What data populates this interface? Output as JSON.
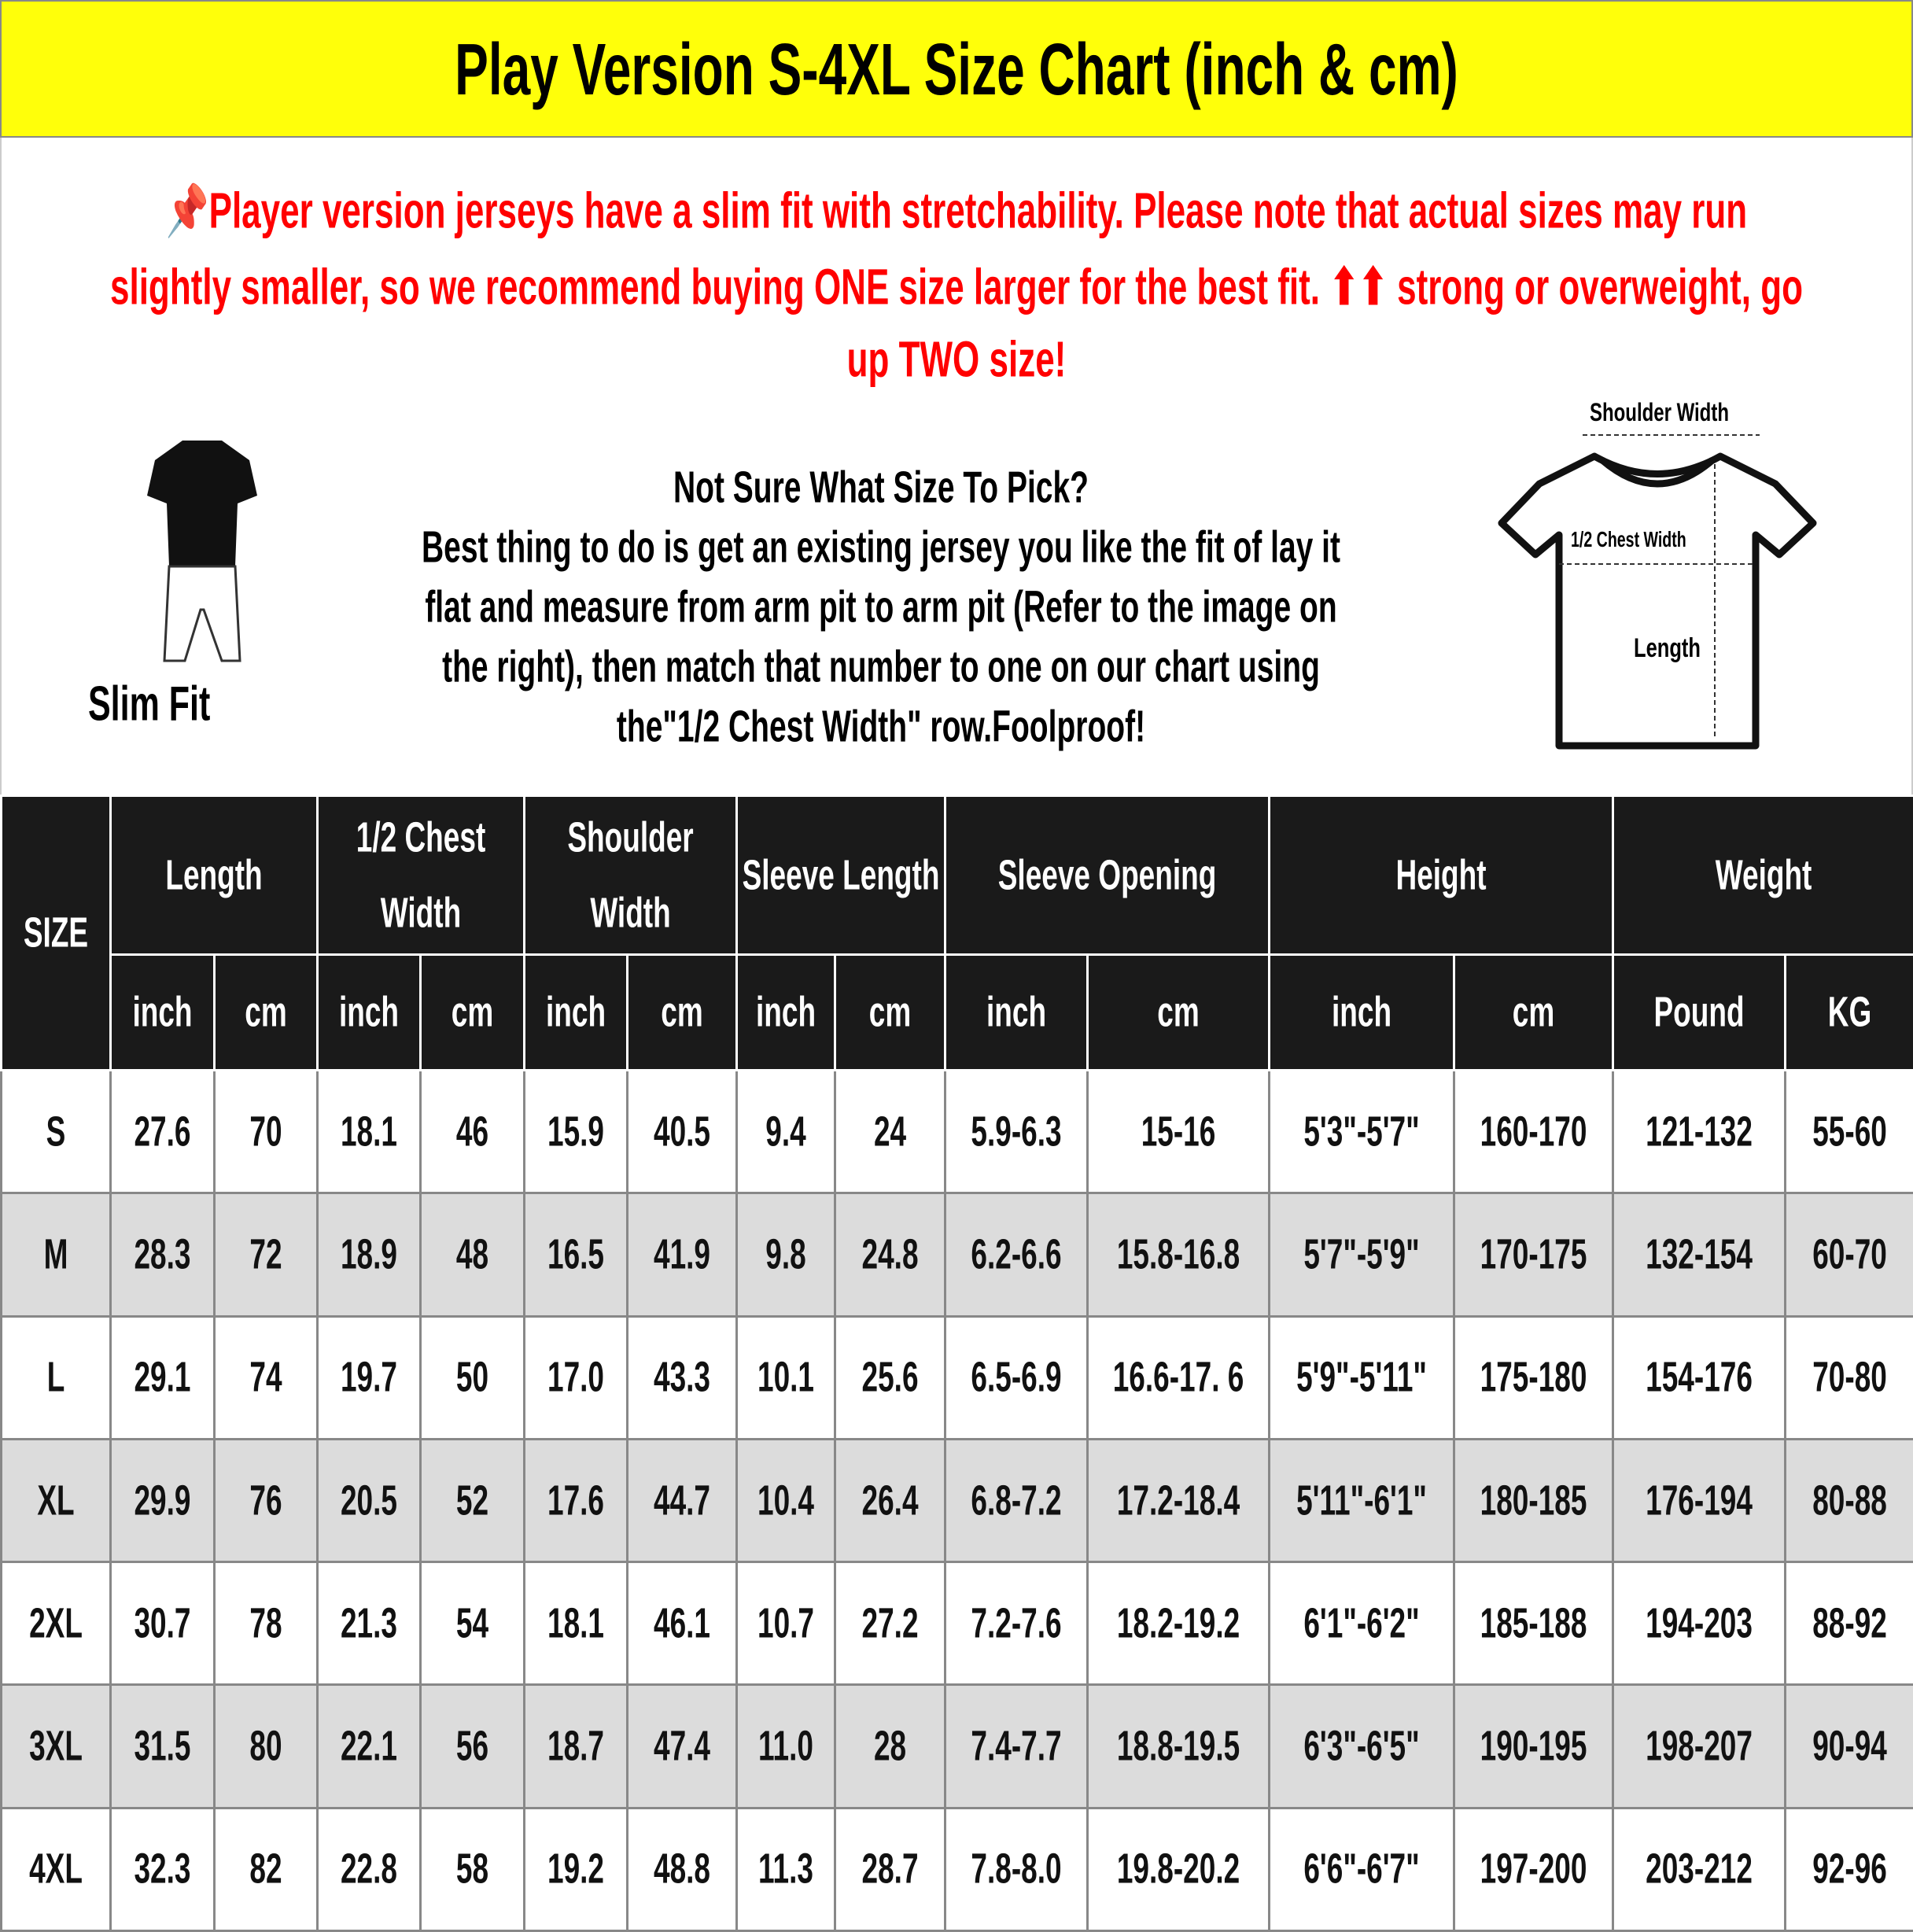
{
  "title": "Play Version S-4XL Size Chart (inch & cm)",
  "note": {
    "icon": "pushpin-icon",
    "line1": "Player version jerseys have a slim fit with stretchability. Please note that actual sizes may run",
    "line2": "slightly smaller, so we recommend buying ONE size larger for the best fit. ⬆⬆ strong or overweight, go",
    "line3": "up TWO size!"
  },
  "help": {
    "heading": "Not Sure What Size To Pick?",
    "l1": "Best thing to do is get an existing jersey you like the fit of lay it",
    "l2": "flat and measure from arm pit to arm pit (Refer to the image on",
    "l3": "the right), then match that number to one on our chart using",
    "l4": "the\"1/2 Chest Width\" row.Foolproof!"
  },
  "slim_fit_label": "Slim Fit",
  "diagram": {
    "shoulder": "Shoulder Width",
    "chest": "1/2 Chest Width",
    "length": "Length"
  },
  "colors": {
    "title_bg": "#ffff0a",
    "note_text": "#ff0000",
    "header_bg": "#1a1a1a",
    "alt_row": "#dcdcdc"
  },
  "table": {
    "size_header": "SIZE",
    "groups": [
      "Length",
      "1/2 Chest Width",
      "Shoulder Width",
      "Sleeve Length",
      "Sleeve Opening",
      "Height",
      "Weight"
    ],
    "units": [
      "inch",
      "cm",
      "inch",
      "cm",
      "inch",
      "cm",
      "inch",
      "cm",
      "inch",
      "cm",
      "inch",
      "cm",
      "Pound",
      "KG"
    ],
    "rows": [
      [
        "S",
        "27.6",
        "70",
        "18.1",
        "46",
        "15.9",
        "40.5",
        "9.4",
        "24",
        "5.9-6.3",
        "15-16",
        "5'3\"-5'7\"",
        "160-170",
        "121-132",
        "55-60"
      ],
      [
        "M",
        "28.3",
        "72",
        "18.9",
        "48",
        "16.5",
        "41.9",
        "9.8",
        "24.8",
        "6.2-6.6",
        "15.8-16.8",
        "5'7\"-5'9\"",
        "170-175",
        "132-154",
        "60-70"
      ],
      [
        "L",
        "29.1",
        "74",
        "19.7",
        "50",
        "17.0",
        "43.3",
        "10.1",
        "25.6",
        "6.5-6.9",
        "16.6-17. 6",
        "5'9\"-5'11\"",
        "175-180",
        "154-176",
        "70-80"
      ],
      [
        "XL",
        "29.9",
        "76",
        "20.5",
        "52",
        "17.6",
        "44.7",
        "10.4",
        "26.4",
        "6.8-7.2",
        "17.2-18.4",
        "5'11\"-6'1\"",
        "180-185",
        "176-194",
        "80-88"
      ],
      [
        "2XL",
        "30.7",
        "78",
        "21.3",
        "54",
        "18.1",
        "46.1",
        "10.7",
        "27.2",
        "7.2-7.6",
        "18.2-19.2",
        "6'1\"-6'2\"",
        "185-188",
        "194-203",
        "88-92"
      ],
      [
        "3XL",
        "31.5",
        "80",
        "22.1",
        "56",
        "18.7",
        "47.4",
        "11.0",
        "28",
        "7.4-7.7",
        "18.8-19.5",
        "6'3\"-6'5\"",
        "190-195",
        "198-207",
        "90-94"
      ],
      [
        "4XL",
        "32.3",
        "82",
        "22.8",
        "58",
        "19.2",
        "48.8",
        "11.3",
        "28.7",
        "7.8-8.0",
        "19.8-20.2",
        "6'6\"-6'7\"",
        "197-200",
        "203-212",
        "92-96"
      ]
    ]
  }
}
